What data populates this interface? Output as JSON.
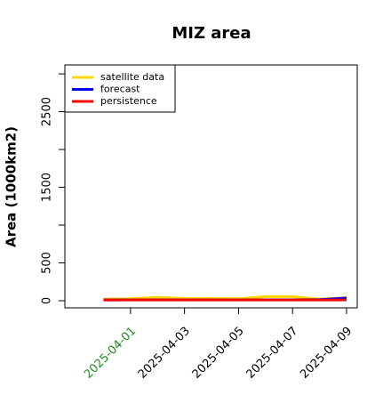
{
  "chart_data": {
    "type": "line",
    "title": "MIZ area",
    "ylabel": "Area (1000km2)",
    "x": [
      "2025-03-31",
      "2025-04-01",
      "2025-04-02",
      "2025-04-03",
      "2025-04-04",
      "2025-04-05",
      "2025-04-06",
      "2025-04-07",
      "2025-04-08",
      "2025-04-09"
    ],
    "series": [
      {
        "name": "satellite data",
        "color": "#ffd700",
        "values": [
          20,
          25,
          45,
          30,
          30,
          25,
          55,
          55,
          20,
          40
        ]
      },
      {
        "name": "forecast",
        "color": "#0000ff",
        "values": [
          10,
          12,
          12,
          12,
          12,
          12,
          12,
          12,
          15,
          35
        ]
      },
      {
        "name": "persistence",
        "color": "#ff0000",
        "values": [
          10,
          10,
          10,
          10,
          10,
          10,
          10,
          10,
          10,
          10
        ]
      }
    ],
    "xlim": [
      "2025-03-29T13:40",
      "2025-04-09T09:30"
    ],
    "xticks": [
      "2025-04-01",
      "2025-04-03",
      "2025-04-05",
      "2025-04-07",
      "2025-04-09"
    ],
    "xtick_colors": [
      "#228b22",
      "#000000",
      "#000000",
      "#000000",
      "#000000"
    ],
    "ylim": [
      -94,
      3118
    ],
    "yticks": [
      0,
      500,
      1500,
      2500
    ],
    "yticks_unlabeled": [
      1000,
      2000,
      3000
    ],
    "legend": "topleft"
  }
}
